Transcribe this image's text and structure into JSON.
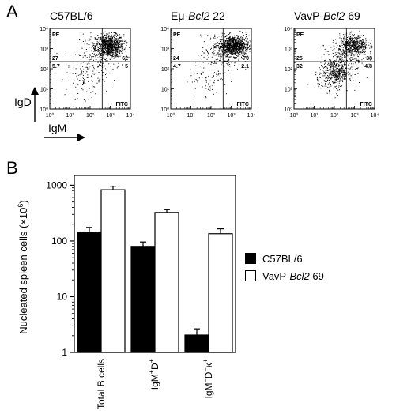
{
  "panel_a": {
    "letter": "A",
    "xlabel": "IgM",
    "ylabel": "IgD",
    "corner_labels": {
      "top_left": "PE",
      "bottom_right": "FITC"
    },
    "x_ticks": [
      "10⁰",
      "10¹",
      "10²",
      "10³",
      "10⁴"
    ],
    "y_ticks": [
      "10⁰",
      "10¹",
      "10²",
      "10³",
      "10⁴"
    ],
    "plots": [
      {
        "title_pre": "C57BL/6",
        "title_it": "",
        "title_post": "",
        "quadrants": {
          "ul": "27",
          "ur": "62",
          "ll": "5.7",
          "lr": "5"
        },
        "gate": {
          "x": 2.6,
          "y": 2.35
        },
        "clusters": [
          {
            "cx": 2.95,
            "cy": 3.15,
            "sx": 0.35,
            "sy": 0.28,
            "n": 900
          },
          {
            "cx": 2.4,
            "cy": 2.7,
            "sx": 0.55,
            "sy": 0.5,
            "n": 180
          },
          {
            "cx": 1.8,
            "cy": 1.6,
            "sx": 0.5,
            "sy": 0.5,
            "n": 120
          }
        ]
      },
      {
        "title_pre": "Eμ-",
        "title_it": "Bcl2",
        "title_post": " 22",
        "quadrants": {
          "ul": "24",
          "ur": "70",
          "ll": "4.7",
          "lr": "2.1"
        },
        "gate": {
          "x": 2.6,
          "y": 2.35
        },
        "clusters": [
          {
            "cx": 3.1,
            "cy": 3.15,
            "sx": 0.38,
            "sy": 0.25,
            "n": 1000
          },
          {
            "cx": 2.5,
            "cy": 2.75,
            "sx": 0.5,
            "sy": 0.45,
            "n": 160
          },
          {
            "cx": 1.9,
            "cy": 1.6,
            "sx": 0.5,
            "sy": 0.5,
            "n": 90
          }
        ]
      },
      {
        "title_pre": "VavP-",
        "title_it": "Bcl2",
        "title_post": " 69",
        "quadrants": {
          "ul": "25",
          "ur": "38",
          "ll": "32",
          "lr": "4.8"
        },
        "gate": {
          "x": 2.6,
          "y": 2.35
        },
        "clusters": [
          {
            "cx": 2.95,
            "cy": 3.2,
            "sx": 0.35,
            "sy": 0.25,
            "n": 520
          },
          {
            "cx": 2.1,
            "cy": 1.85,
            "sx": 0.35,
            "sy": 0.3,
            "n": 420
          },
          {
            "cx": 2.5,
            "cy": 2.55,
            "sx": 0.5,
            "sy": 0.45,
            "n": 220
          },
          {
            "cx": 1.7,
            "cy": 1.5,
            "sx": 0.4,
            "sy": 0.4,
            "n": 80
          }
        ]
      }
    ]
  },
  "chart_data": {
    "letter": "B",
    "type": "bar",
    "ylabel_pre": "Nucleated spleen cells (×10",
    "ylabel_sup": "6",
    "ylabel_post": ")",
    "yscale": "log",
    "ylim": [
      1,
      1500
    ],
    "y_ticks": [
      1,
      10,
      100,
      1000
    ],
    "y_tick_labels": [
      "1",
      "10",
      "100",
      "1000"
    ],
    "categories": [
      "Total B cells",
      "IgM⁺D⁺",
      "IgM⁻D⁻κ⁺"
    ],
    "category_labels": [
      {
        "base": "Total B cells",
        "parts": []
      },
      {
        "base": "",
        "parts": [
          [
            "IgM",
            ""
          ],
          [
            "+",
            "sup"
          ],
          [
            "D",
            ""
          ],
          [
            "+",
            "sup"
          ]
        ]
      },
      {
        "base": "",
        "parts": [
          [
            "IgM",
            ""
          ],
          [
            "−",
            "sup"
          ],
          [
            "D",
            ""
          ],
          [
            "−",
            "sup"
          ],
          [
            "κ",
            ""
          ],
          [
            "+",
            "sup"
          ]
        ]
      }
    ],
    "series": [
      {
        "name": "C57BL/6",
        "name_pre": "C57BL/6",
        "name_it": "",
        "name_post": "",
        "values": [
          145,
          80,
          2.05
        ],
        "errors": [
          175,
          96,
          2.65
        ],
        "fill": "#000000"
      },
      {
        "name": "VavP-Bcl2 69",
        "name_pre": "VavP-",
        "name_it": "Bcl2",
        "name_post": " 69",
        "values": [
          830,
          325,
          135
        ],
        "errors": [
          960,
          365,
          165
        ],
        "fill": "#ffffff"
      }
    ],
    "legend_position": "right",
    "grid": false
  }
}
